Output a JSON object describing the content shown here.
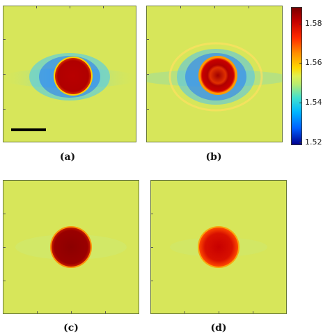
{
  "panels": [
    {
      "id": "a",
      "caption": "(a)"
    },
    {
      "id": "b",
      "caption": "(b)"
    },
    {
      "id": "c",
      "caption": "(c)"
    },
    {
      "id": "d",
      "caption": "(d)"
    }
  ],
  "colorbar": {
    "labels": [
      "1.58",
      "1.56",
      "1.54",
      "1.52"
    ],
    "colors": {
      "top": "#7a0000",
      "mid": "#e0f050",
      "bottom": "#00008f"
    }
  },
  "colors": {
    "background_field": "#d7e65a",
    "disk": "#b40000",
    "halo": "#2fb6ff"
  }
}
